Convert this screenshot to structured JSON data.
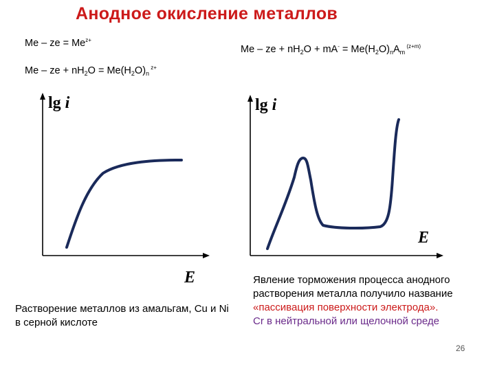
{
  "title": "Анодное окисление металлов",
  "equations": {
    "eq1": {
      "a": "Me – ze = Me",
      "sup": "z+"
    },
    "eq2": {
      "a": "Me – ze + nH",
      "sub1": "2",
      "b": "O = Me(H",
      "sub2": "2",
      "c": "O)",
      "sub3": "n",
      "sup": " z+"
    },
    "eq3": {
      "a": "Me – ze + nH",
      "sub1": "2",
      "b": "O + mA",
      "sup1": "-",
      "c": " = Me(H",
      "sub2": "2",
      "d": "O)",
      "sub3": "n",
      "e": "A",
      "sub4": "m",
      "sup2": " (z+m)"
    }
  },
  "left_plot": {
    "ylabel_a": "lg ",
    "ylabel_b": "i",
    "xlabel": "E",
    "caption": "Растворение металлов из амальгам, Cu и Ni в серной кислоте"
  },
  "right_plot": {
    "ylabel_a": "lg ",
    "ylabel_b": "i",
    "xlabel": "E",
    "caption_black": "Явление торможения процесса анодного растворения металла  получило название ",
    "caption_red": "«пассивация поверхности электрода».",
    "caption_purple": "Cr в нейтральной или щелочной среде"
  },
  "colors": {
    "title": "#cc1a1a",
    "curve": "#1a2a5a",
    "axes": "#000000",
    "red": "#cc1a1a",
    "purple": "#6a2a8a"
  },
  "page_number": "26"
}
